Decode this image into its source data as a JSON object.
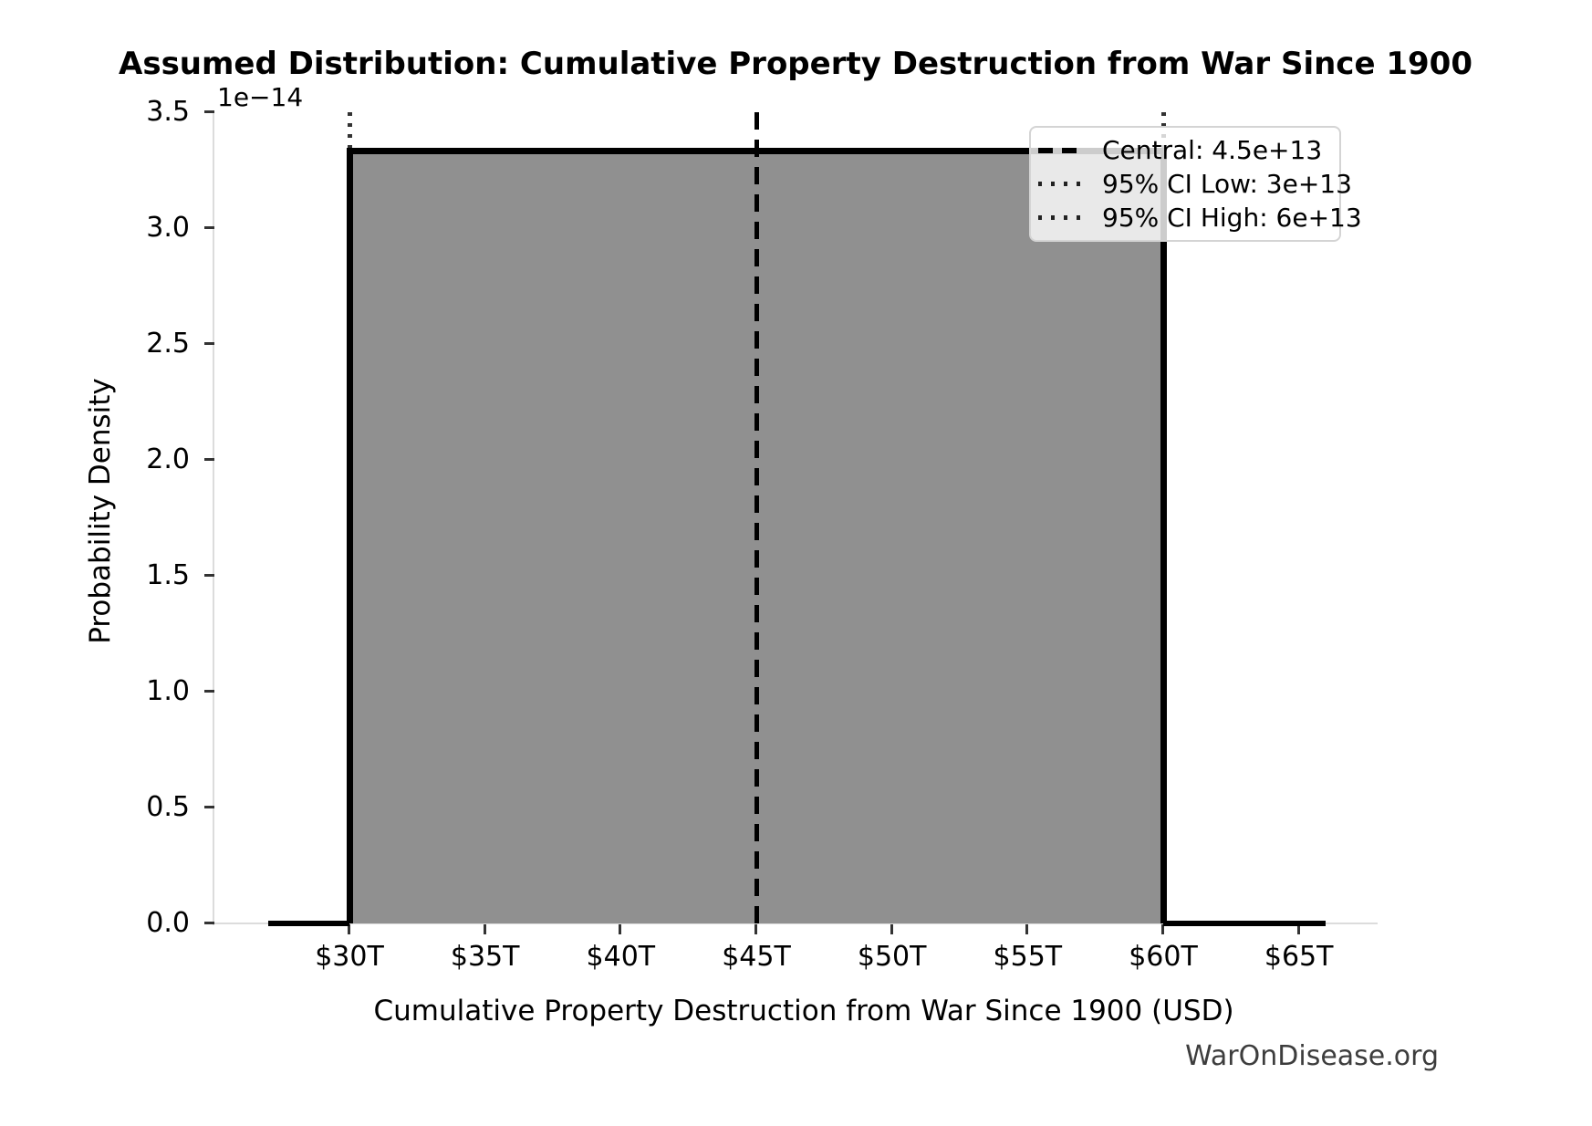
{
  "watermark": "WarOnDisease.org",
  "chart_data": {
    "type": "area",
    "title": "Assumed Distribution: Cumulative Property Destruction from War Since 1900",
    "xlabel": "Cumulative Property Destruction from War Since 1900 (USD)",
    "ylabel": "Probability Density",
    "y_offset_label": "1e−14",
    "x_tick_labels": [
      "$30T",
      "$35T",
      "$40T",
      "$45T",
      "$50T",
      "$55T",
      "$60T",
      "$65T"
    ],
    "x_tick_values_trillions": [
      30,
      35,
      40,
      45,
      50,
      55,
      60,
      65
    ],
    "y_tick_labels": [
      "0.0",
      "0.5",
      "1.0",
      "1.5",
      "2.0",
      "2.5",
      "3.0",
      "3.5"
    ],
    "y_tick_values_1e14": [
      0,
      0.5,
      1.0,
      1.5,
      2.0,
      2.5,
      3.0,
      3.5
    ],
    "ylim_1e14": [
      0,
      3.5
    ],
    "xlim_trillions": [
      25.0,
      67.9
    ],
    "grid": false,
    "legend_position": "upper right",
    "distribution": {
      "kind": "uniform",
      "support_trillions": [
        30,
        60
      ],
      "density_1e14": 3.3333
    },
    "pdf_line_x_range_trillions": [
      27,
      66
    ],
    "central_trillions": 45,
    "ci_low_trillions": 30,
    "ci_high_trillions": 60,
    "series": [
      {
        "name": "pdf",
        "points_trillions_vs_1e14": [
          [
            27,
            0
          ],
          [
            30,
            0
          ],
          [
            30,
            3.3333
          ],
          [
            60,
            3.3333
          ],
          [
            60,
            0
          ],
          [
            66,
            0
          ]
        ]
      }
    ],
    "legend": [
      {
        "style": "dashed",
        "label": "Central: 4.5e+13"
      },
      {
        "style": "dotted",
        "label": "95% CI Low: 3e+13"
      },
      {
        "style": "dotted",
        "label": "95% CI High: 6e+13"
      }
    ],
    "colors": {
      "fill": "#909090",
      "line": "#000000",
      "spine": "#dcdcdc",
      "tick": "#333333",
      "watermark": "#3d3d3d",
      "background": "#ffffff"
    }
  }
}
